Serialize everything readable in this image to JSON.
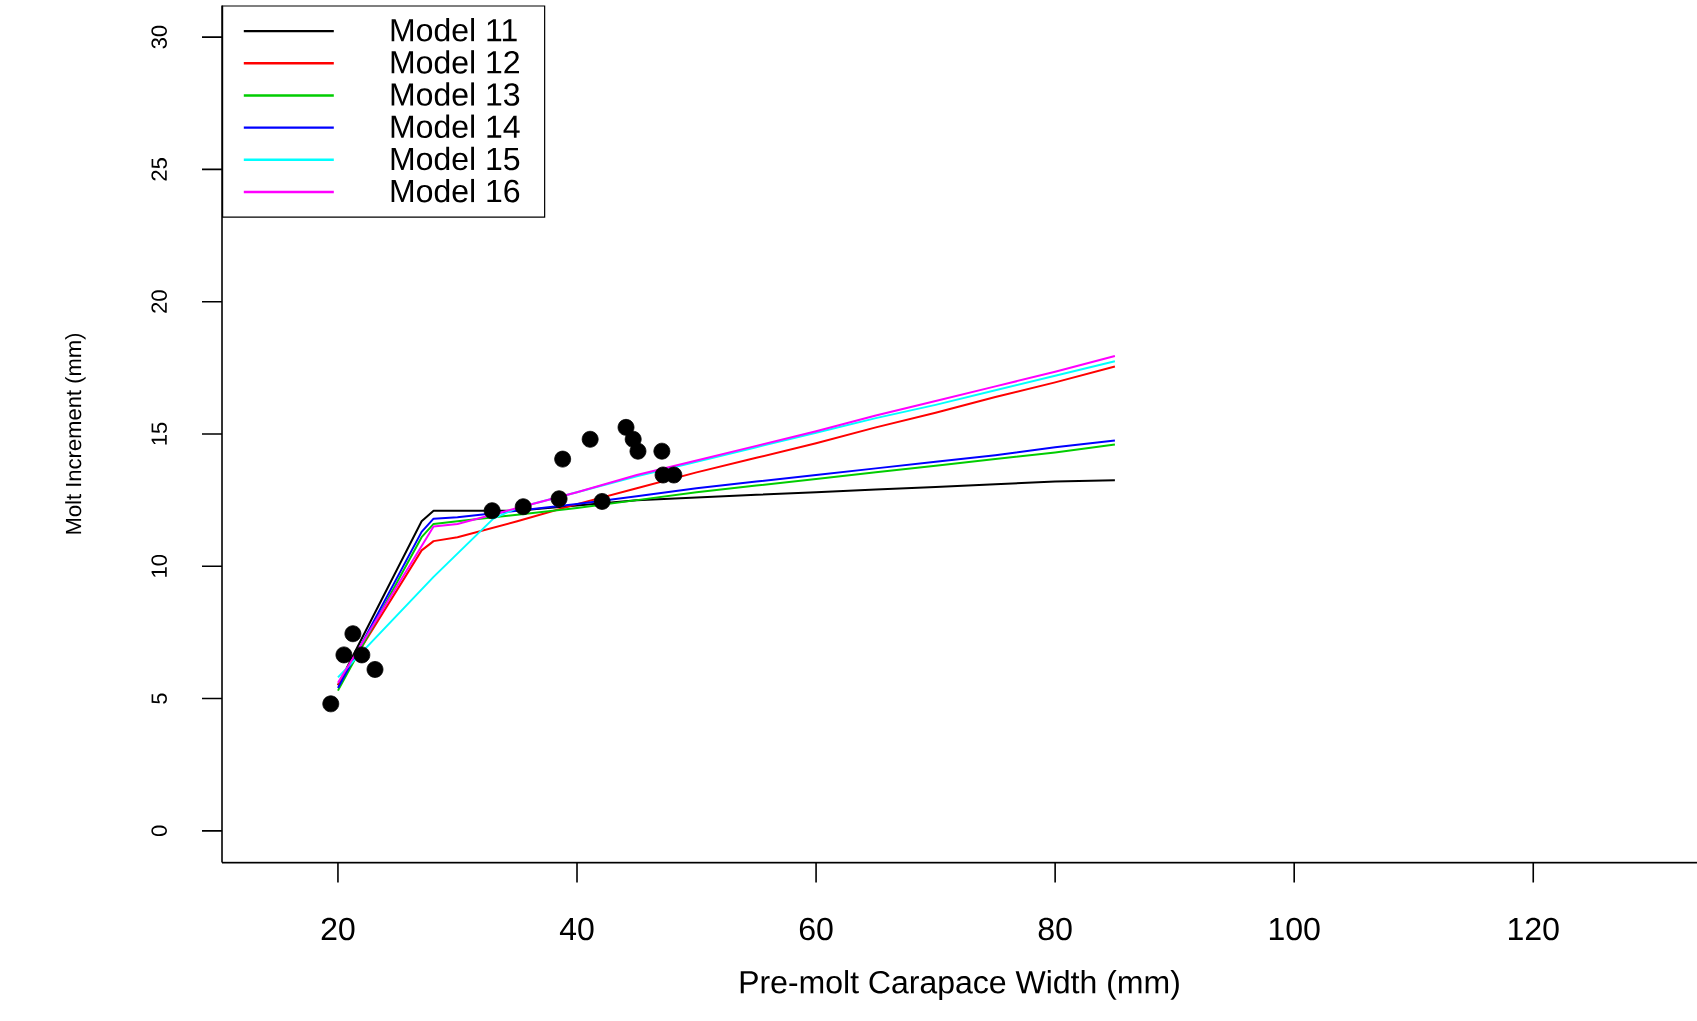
{
  "chart_data": {
    "type": "line",
    "xlabel": "Pre-molt Carapace Width (mm)",
    "ylabel": "Molt Increment (mm)",
    "xlim": [
      10.3,
      133.7
    ],
    "ylim": [
      -1.2,
      31.2
    ],
    "xticks": [
      20,
      40,
      60,
      80,
      100,
      120
    ],
    "yticks": [
      0,
      5,
      10,
      15,
      20,
      25,
      30
    ],
    "grid": false,
    "legend": "top left",
    "line_style": "solid",
    "series": [
      {
        "type": "scatter",
        "color": "#000000",
        "x": [
          19.4,
          20.5,
          21.25,
          22.0,
          23.1,
          32.9,
          35.5,
          38.5,
          38.8,
          41.1,
          42.1,
          44.1,
          44.7,
          45.1,
          47.1,
          47.2,
          48.1
        ],
        "values": [
          4.8,
          6.65,
          7.45,
          6.65,
          6.1,
          12.1,
          12.25,
          12.55,
          14.05,
          14.8,
          12.45,
          15.25,
          14.8,
          14.35,
          14.35,
          13.45,
          13.45
        ]
      },
      {
        "name": "Model 11",
        "color": "#000000",
        "x": [
          20,
          27,
          28,
          30,
          35,
          40,
          45,
          50,
          55,
          60,
          65,
          70,
          75,
          80,
          85
        ],
        "values": [
          5.5,
          11.7,
          12.1,
          12.1,
          12.1,
          12.3,
          12.5,
          12.6,
          12.7,
          12.8,
          12.9,
          13.0,
          13.1,
          13.2,
          13.25
        ]
      },
      {
        "name": "Model 12",
        "color": "#ff0000",
        "x": [
          20,
          27,
          28,
          30,
          35,
          40,
          45,
          50,
          55,
          60,
          65,
          70,
          75,
          80,
          85
        ],
        "values": [
          5.5,
          10.6,
          10.95,
          11.1,
          11.7,
          12.35,
          12.95,
          13.55,
          14.1,
          14.65,
          15.25,
          15.8,
          16.4,
          16.95,
          17.55
        ]
      },
      {
        "name": "Model 13",
        "color": "#00cd00",
        "x": [
          20,
          27,
          28,
          30,
          35,
          40,
          45,
          50,
          55,
          60,
          65,
          70,
          75,
          80,
          85
        ],
        "values": [
          5.3,
          11.1,
          11.6,
          11.7,
          11.95,
          12.2,
          12.5,
          12.8,
          13.05,
          13.3,
          13.55,
          13.8,
          14.05,
          14.3,
          14.6
        ]
      },
      {
        "name": "Model 14",
        "color": "#0000ff",
        "x": [
          20,
          27,
          28,
          30,
          35,
          40,
          45,
          50,
          55,
          60,
          65,
          70,
          75,
          80,
          85
        ],
        "values": [
          5.4,
          11.3,
          11.8,
          11.85,
          12.1,
          12.35,
          12.65,
          12.95,
          13.2,
          13.45,
          13.7,
          13.95,
          14.2,
          14.5,
          14.75
        ]
      },
      {
        "name": "Model 15",
        "color": "#00ffff",
        "x": [
          20,
          28,
          33,
          35,
          40,
          45,
          50,
          55,
          60,
          65,
          70,
          75,
          80,
          85
        ],
        "values": [
          5.8,
          9.6,
          11.8,
          12.2,
          12.8,
          13.4,
          13.95,
          14.5,
          15.05,
          15.6,
          16.1,
          16.65,
          17.2,
          17.75
        ]
      },
      {
        "name": "Model 16",
        "color": "#ff00ff",
        "x": [
          20,
          28,
          30,
          35,
          40,
          45,
          50,
          55,
          60,
          65,
          70,
          75,
          80,
          85
        ],
        "values": [
          5.6,
          11.5,
          11.6,
          12.2,
          12.8,
          13.45,
          14.0,
          14.55,
          15.1,
          15.7,
          16.25,
          16.8,
          17.35,
          17.95
        ]
      }
    ]
  }
}
